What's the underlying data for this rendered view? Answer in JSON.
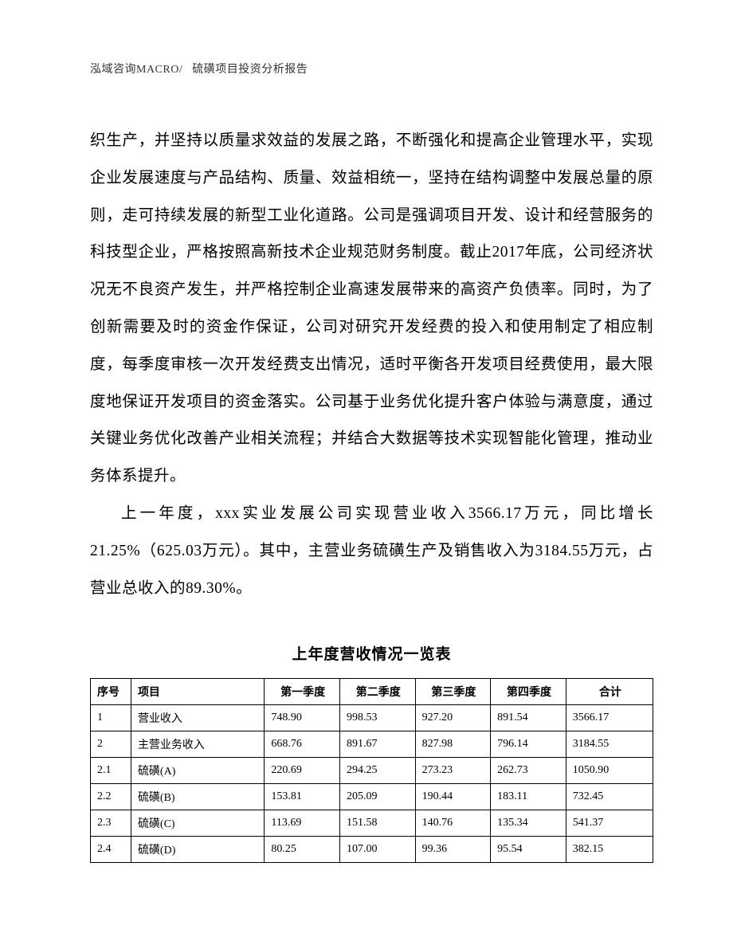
{
  "header": {
    "left": "泓域咨询MACRO/",
    "right": "硫磺项目投资分析报告"
  },
  "paragraphs": {
    "p1": "织生产，并坚持以质量求效益的发展之路，不断强化和提高企业管理水平，实现企业发展速度与产品结构、质量、效益相统一，坚持在结构调整中发展总量的原则，走可持续发展的新型工业化道路。公司是强调项目开发、设计和经营服务的科技型企业，严格按照高新技术企业规范财务制度。截止2017年底，公司经济状况无不良资产发生，并严格控制企业高速发展带来的高资产负债率。同时，为了创新需要及时的资金作保证，公司对研究开发经费的投入和使用制定了相应制度，每季度审核一次开发经费支出情况，适时平衡各开发项目经费使用，最大限度地保证开发项目的资金落实。公司基于业务优化提升客户体验与满意度，通过关键业务优化改善产业相关流程；并结合大数据等技术实现智能化管理，推动业务体系提升。",
    "p2": "上一年度，xxx实业发展公司实现营业收入3566.17万元，同比增长21.25%（625.03万元）。其中，主营业务硫磺生产及销售收入为3184.55万元，占营业总收入的89.30%。"
  },
  "table": {
    "title": "上年度营收情况一览表",
    "columns": [
      "序号",
      "项目",
      "第一季度",
      "第二季度",
      "第三季度",
      "第四季度",
      "合计"
    ],
    "rows": [
      [
        "1",
        "营业收入",
        "748.90",
        "998.53",
        "927.20",
        "891.54",
        "3566.17"
      ],
      [
        "2",
        "主营业务收入",
        "668.76",
        "891.67",
        "827.98",
        "796.14",
        "3184.55"
      ],
      [
        "2.1",
        "硫磺(A)",
        "220.69",
        "294.25",
        "273.23",
        "262.73",
        "1050.90"
      ],
      [
        "2.2",
        "硫磺(B)",
        "153.81",
        "205.09",
        "190.44",
        "183.11",
        "732.45"
      ],
      [
        "2.3",
        "硫磺(C)",
        "113.69",
        "151.58",
        "140.76",
        "135.34",
        "541.37"
      ],
      [
        "2.4",
        "硫磺(D)",
        "80.25",
        "107.00",
        "99.36",
        "95.54",
        "382.15"
      ]
    ]
  }
}
